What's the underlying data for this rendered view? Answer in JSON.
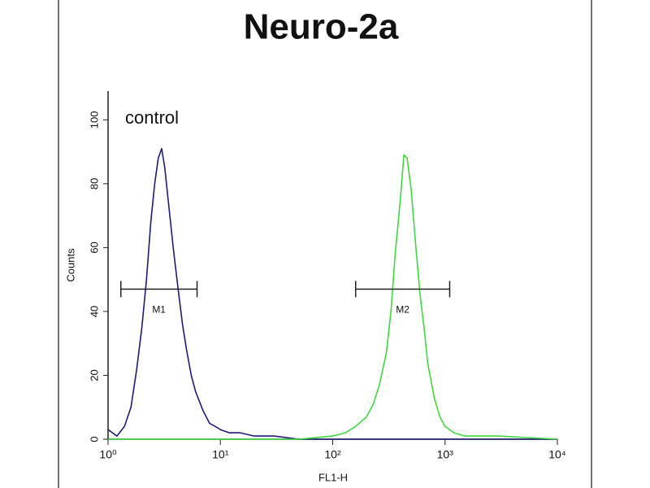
{
  "chart_data": {
    "type": "histogram-line",
    "title": "Neuro-2a",
    "x_label": "FL1-H",
    "y_label": "Counts",
    "annotation": "control",
    "xscale": "log",
    "xlim": [
      1,
      10000
    ],
    "ylim": [
      0,
      109
    ],
    "xticks": [
      {
        "value": 1,
        "label": "10⁰"
      },
      {
        "value": 10,
        "label": "10¹"
      },
      {
        "value": 100,
        "label": "10²"
      },
      {
        "value": 1000,
        "label": "10³"
      },
      {
        "value": 10000,
        "label": "10⁴"
      }
    ],
    "yticks": [
      0,
      20,
      40,
      60,
      80,
      100
    ],
    "series": [
      {
        "color": "#1c1c78",
        "x": [
          1,
          1.2,
          1.4,
          1.6,
          1.8,
          2.0,
          2.2,
          2.4,
          2.6,
          2.8,
          3.0,
          3.2,
          3.5,
          3.8,
          4.2,
          4.6,
          5,
          5.5,
          6,
          7,
          8,
          9,
          10,
          12,
          15,
          20,
          30,
          50,
          100,
          300,
          1000,
          10000
        ],
        "values": [
          3,
          1,
          4,
          10,
          22,
          35,
          50,
          68,
          80,
          88,
          91,
          85,
          72,
          60,
          47,
          36,
          28,
          20,
          15,
          9,
          5,
          4,
          3,
          2,
          2,
          1,
          1,
          0,
          0,
          0,
          0,
          0
        ]
      },
      {
        "color": "#3fd83f",
        "x": [
          1,
          50,
          100,
          130,
          160,
          200,
          230,
          260,
          300,
          330,
          360,
          400,
          430,
          460,
          500,
          550,
          600,
          650,
          700,
          800,
          900,
          1000,
          1200,
          1500,
          3000,
          10000
        ],
        "values": [
          0,
          0,
          1,
          2,
          4,
          7,
          11,
          17,
          27,
          40,
          58,
          75,
          89,
          88,
          78,
          60,
          45,
          35,
          24,
          13,
          7,
          4,
          2,
          1,
          1,
          0
        ]
      }
    ],
    "markers": [
      {
        "label": "M1",
        "range": [
          1.3,
          6.2
        ],
        "y": 47
      },
      {
        "label": "M2",
        "range": [
          160,
          1100
        ],
        "y": 47
      }
    ]
  }
}
